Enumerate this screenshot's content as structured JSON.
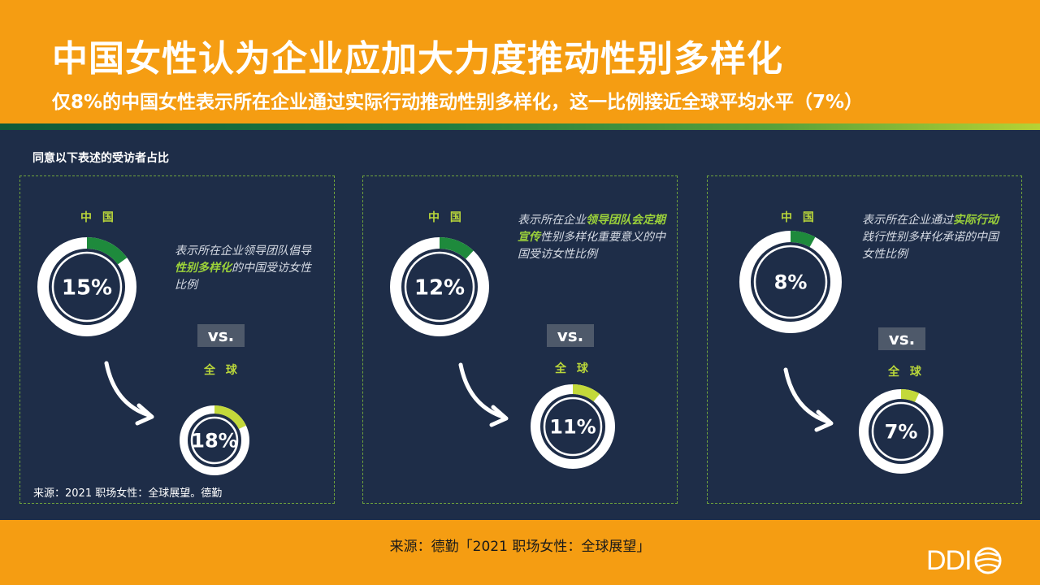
{
  "header": {
    "title": "中国女性认为企业应加大力度推动性别多样化",
    "subtitle": "仅8%的中国女性表示所在企业通过实际行动推动性别多样化，这一比例接近全球平均水平（7%）"
  },
  "section_label": "同意以下表述的受访者占比",
  "panels": [
    {
      "china_label": "中 国",
      "global_label": "全 球",
      "vs_label": "vs.",
      "desc_pre": "表示所在企业领导团队倡导",
      "desc_hl": "性别多样化",
      "desc_post": "的中国受访女性比例",
      "source": "来源：2021 职场女性：全球展望。德勤"
    },
    {
      "china_label": "中 国",
      "global_label": "全 球",
      "vs_label": "vs.",
      "desc_pre": "表示所在企业",
      "desc_hl": "领导团队会定期宣传",
      "desc_post": "性别多样化重要意义的中国受访女性比例"
    },
    {
      "china_label": "中 国",
      "global_label": "全 球",
      "vs_label": "vs.",
      "desc_pre": "表示所在企业通过",
      "desc_hl": "实际行动",
      "desc_post": "践行性别多样化承诺的中国女性比例"
    }
  ],
  "chart_data": [
    {
      "type": "pie",
      "categories": [
        "中国",
        "全球"
      ],
      "values": [
        15,
        18
      ],
      "value_labels": [
        "15%",
        "18%"
      ],
      "colors": [
        "#1e8a3c",
        "#c3d93a"
      ]
    },
    {
      "type": "pie",
      "categories": [
        "中国",
        "全球"
      ],
      "values": [
        12,
        11
      ],
      "value_labels": [
        "12%",
        "11%"
      ],
      "colors": [
        "#1e8a3c",
        "#c3d93a"
      ]
    },
    {
      "type": "pie",
      "categories": [
        "中国",
        "全球"
      ],
      "values": [
        8,
        7
      ],
      "value_labels": [
        "8%",
        "7%"
      ],
      "colors": [
        "#1e8a3c",
        "#c3d93a"
      ]
    }
  ],
  "footer": {
    "source": "来源：德勤「2021 职场女性：全球展望」",
    "logo_text": "DDI"
  },
  "colors": {
    "orange": "#f59d12",
    "navy": "#1e2d48",
    "china_arc": "#1e8a3c",
    "global_arc": "#c3d93a",
    "highlight": "#9bd13a"
  }
}
